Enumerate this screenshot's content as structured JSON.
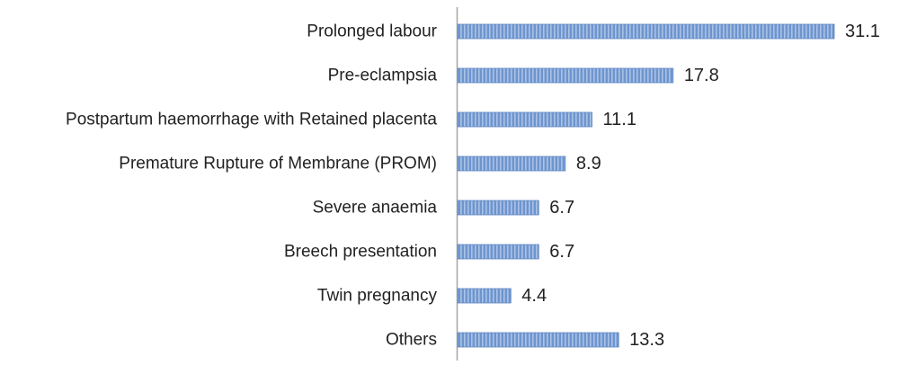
{
  "chart_data": {
    "type": "bar",
    "orientation": "horizontal",
    "categories": [
      "Prolonged labour",
      "Pre-eclampsia",
      "Postpartum haemorrhage with Retained placenta",
      "Premature Rupture of Membrane (PROM)",
      "Severe anaemia",
      "Breech presentation",
      "Twin pregnancy",
      "Others"
    ],
    "values": [
      31.1,
      17.8,
      11.1,
      8.9,
      6.7,
      6.7,
      4.4,
      13.3
    ],
    "value_labels": [
      "31.1",
      "17.8",
      "11.1",
      "8.9",
      "6.7",
      "6.7",
      "4.4",
      "13.3"
    ],
    "title": "",
    "xlabel": "",
    "ylabel": "",
    "xlim": [
      0,
      31.1
    ],
    "grid": false,
    "legend": "none",
    "bar_color": "#6E95CE",
    "bar_stripe_color": "#A9C2E6"
  }
}
